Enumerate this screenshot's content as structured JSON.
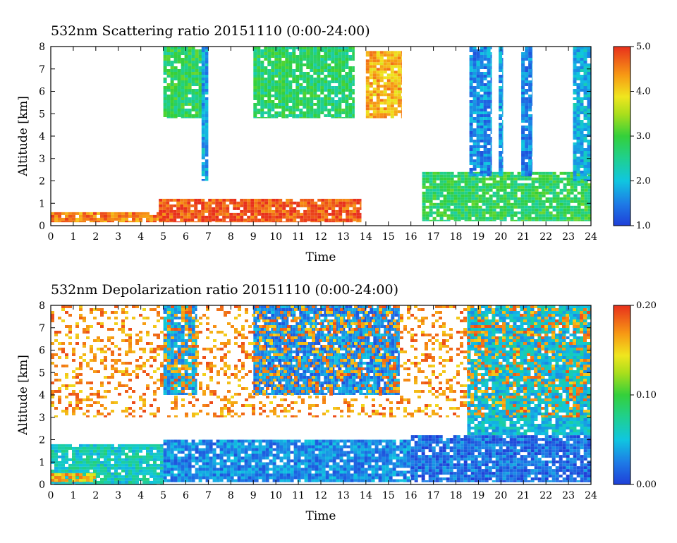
{
  "chart_data": [
    {
      "type": "heatmap",
      "title": "532nm Scattering ratio  20151110 (0:00-24:00)",
      "xlabel": "Time",
      "ylabel": "Altitude [km]",
      "xlim": [
        0,
        24
      ],
      "ylim": [
        0,
        8
      ],
      "x_ticks": [
        "0",
        "1",
        "2",
        "3",
        "4",
        "5",
        "6",
        "7",
        "8",
        "9",
        "10",
        "11",
        "12",
        "13",
        "14",
        "15",
        "16",
        "17",
        "18",
        "19",
        "20",
        "21",
        "22",
        "23",
        "24"
      ],
      "y_ticks": [
        "0",
        "1",
        "2",
        "3",
        "4",
        "5",
        "6",
        "7",
        "8"
      ],
      "colorbar": {
        "min": 1.0,
        "max": 5.0,
        "ticks": [
          "1.0",
          "2.0",
          "3.0",
          "4.0",
          "5.0"
        ]
      },
      "features": [
        {
          "x": [
            0,
            5
          ],
          "alt": [
            0.15,
            0.6
          ],
          "value": 4.5
        },
        {
          "x": [
            4.8,
            13.8
          ],
          "alt": [
            0.15,
            1.2
          ],
          "value": 4.8
        },
        {
          "x": [
            5,
            6.8
          ],
          "alt": [
            4.8,
            8
          ],
          "value": 2.8
        },
        {
          "x": [
            6.7,
            7.0
          ],
          "alt": [
            2,
            8
          ],
          "value": 1.8
        },
        {
          "x": [
            9,
            13.5
          ],
          "alt": [
            4.8,
            8
          ],
          "value": 2.7
        },
        {
          "x": [
            14,
            15.6
          ],
          "alt": [
            4.8,
            7.8
          ],
          "value": 4.2
        },
        {
          "x": [
            16.5,
            24
          ],
          "alt": [
            0.2,
            2.4
          ],
          "value": 2.8
        },
        {
          "x": [
            18.6,
            19.6
          ],
          "alt": [
            2.2,
            8
          ],
          "value": 1.6
        },
        {
          "x": [
            19.9,
            20.1
          ],
          "alt": [
            2.2,
            8
          ],
          "value": 1.7
        },
        {
          "x": [
            20.9,
            21.4
          ],
          "alt": [
            2.2,
            8
          ],
          "value": 1.6
        },
        {
          "x": [
            23.2,
            24
          ],
          "alt": [
            2,
            8
          ],
          "value": 1.9
        }
      ]
    },
    {
      "type": "heatmap",
      "title": "532nm Depolarization ratio  20151110 (0:00-24:00)",
      "xlabel": "Time",
      "ylabel": "Altitude [km]",
      "xlim": [
        0,
        24
      ],
      "ylim": [
        0,
        8
      ],
      "x_ticks": [
        "0",
        "1",
        "2",
        "3",
        "4",
        "5",
        "6",
        "7",
        "8",
        "9",
        "10",
        "11",
        "12",
        "13",
        "14",
        "15",
        "16",
        "17",
        "18",
        "19",
        "20",
        "21",
        "22",
        "23",
        "24"
      ],
      "y_ticks": [
        "0",
        "1",
        "2",
        "3",
        "4",
        "5",
        "6",
        "7",
        "8"
      ],
      "colorbar": {
        "min": 0.0,
        "max": 0.2,
        "ticks": [
          "0.00",
          "0.10",
          "0.20"
        ]
      },
      "features": [
        {
          "x": [
            0,
            5
          ],
          "alt": [
            0,
            1.8
          ],
          "value": 0.06
        },
        {
          "x": [
            0,
            2
          ],
          "alt": [
            0.1,
            0.5
          ],
          "value": 0.16
        },
        {
          "x": [
            5,
            16
          ],
          "alt": [
            0.1,
            2
          ],
          "value": 0.03
        },
        {
          "x": [
            5,
            6.5
          ],
          "alt": [
            4,
            8
          ],
          "value": 0.04
        },
        {
          "x": [
            9,
            15.5
          ],
          "alt": [
            4,
            8
          ],
          "value": 0.03
        },
        {
          "x": [
            16,
            24
          ],
          "alt": [
            0.1,
            2.2
          ],
          "value": 0.02
        },
        {
          "x": [
            18.5,
            24
          ],
          "alt": [
            2.2,
            8
          ],
          "value": 0.05
        },
        {
          "x": [
            0,
            24
          ],
          "alt": [
            3,
            8
          ],
          "value": 0.17
        }
      ]
    }
  ]
}
